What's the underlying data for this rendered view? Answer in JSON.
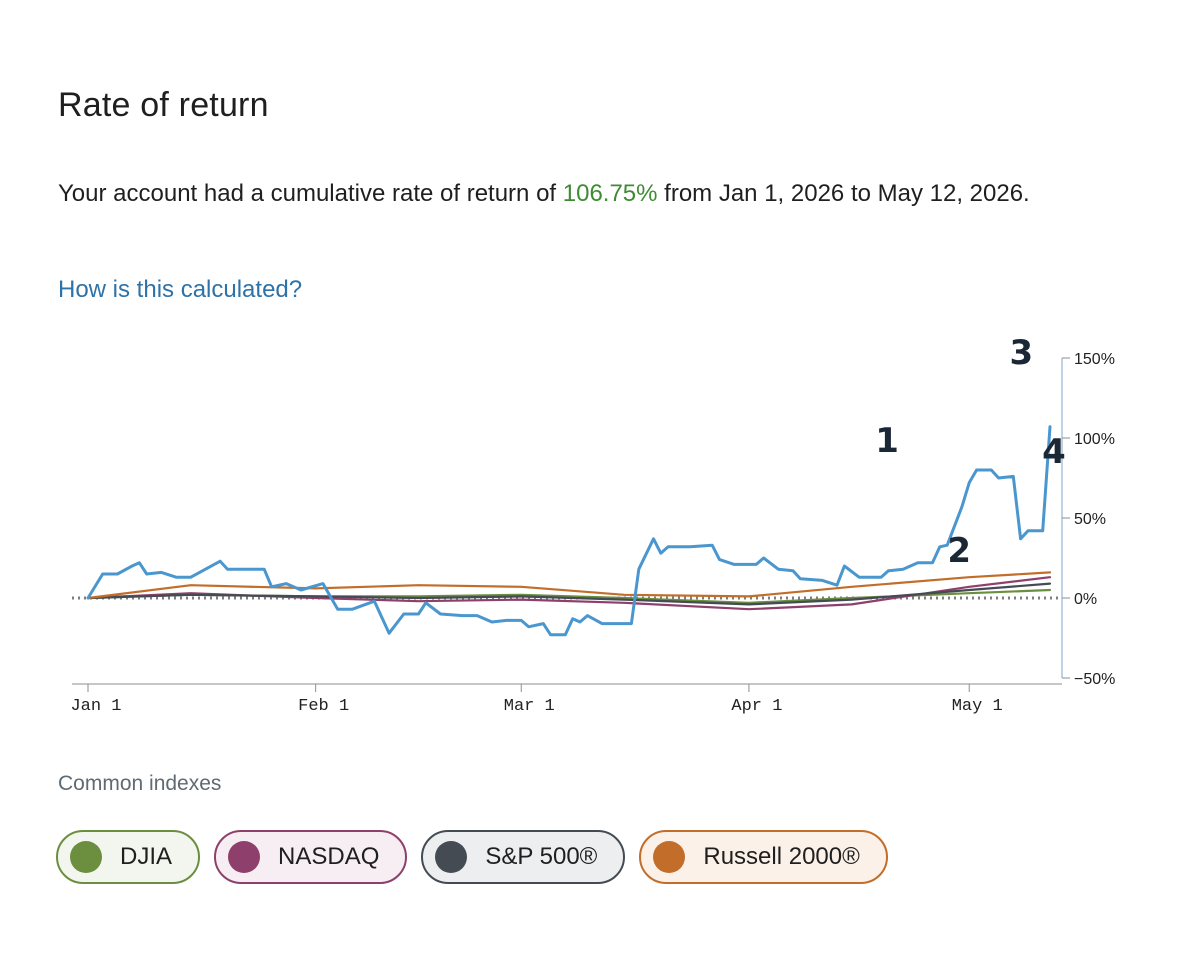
{
  "header": {
    "title": "Rate of return"
  },
  "summary": {
    "prefix": "Your account had a cumulative rate of return of ",
    "rate": "106.75%",
    "suffix": " from Jan 1, 2026 to May 12, 2026."
  },
  "link": {
    "how_calculated": "How is this calculated?"
  },
  "indexes": {
    "label": "Common indexes",
    "items": [
      "DJIA",
      "NASDAQ",
      "S&P 500®",
      "Russell 2000®"
    ]
  },
  "colors": {
    "account": "#4a96cf",
    "djia": "#6b8e3f",
    "nasdaq": "#8e3f6b",
    "sp500": "#444b52",
    "russell": "#c26d2a",
    "rate_text": "#3f8b34",
    "link": "#2e72a8"
  },
  "chart_data": {
    "type": "line",
    "x_start": "2026-01-01",
    "x_end": "2026-05-12",
    "x_ticks": [
      {
        "date": "2026-01-01",
        "label": "Jan 1"
      },
      {
        "date": "2026-02-01",
        "label": "Feb 1"
      },
      {
        "date": "2026-03-01",
        "label": "Mar 1"
      },
      {
        "date": "2026-04-01",
        "label": "Apr 1"
      },
      {
        "date": "2026-05-01",
        "label": "May 1"
      }
    ],
    "y_ticks": [
      {
        "value": 150,
        "label": "150%"
      },
      {
        "value": 100,
        "label": "100%"
      },
      {
        "value": 50,
        "label": "50%"
      },
      {
        "value": 0,
        "label": "0%"
      },
      {
        "value": -50,
        "label": "−50%"
      }
    ],
    "ylim": [
      -50,
      150
    ],
    "y_axis_position": "right",
    "baseline": 0,
    "annotations": [
      {
        "label": "1",
        "x": "2026-04-19",
        "y": 80
      },
      {
        "label": "2",
        "x": "2026-04-28",
        "y": 15
      },
      {
        "label": "3",
        "x": "2026-05-10",
        "y": 140
      },
      {
        "label": "4",
        "x": "2026-05-12",
        "y": 107
      }
    ],
    "series": [
      {
        "name": "Account",
        "color": "#4a96cf",
        "points": [
          [
            "2026-01-01",
            0
          ],
          [
            "2026-01-03",
            15
          ],
          [
            "2026-01-05",
            15
          ],
          [
            "2026-01-07",
            20
          ],
          [
            "2026-01-08",
            22
          ],
          [
            "2026-01-09",
            15
          ],
          [
            "2026-01-11",
            16
          ],
          [
            "2026-01-13",
            13
          ],
          [
            "2026-01-15",
            13
          ],
          [
            "2026-01-17",
            18
          ],
          [
            "2026-01-19",
            23
          ],
          [
            "2026-01-20",
            18
          ],
          [
            "2026-01-22",
            18
          ],
          [
            "2026-01-25",
            18
          ],
          [
            "2026-01-26",
            7
          ],
          [
            "2026-01-28",
            9
          ],
          [
            "2026-01-30",
            5
          ],
          [
            "2026-02-02",
            9
          ],
          [
            "2026-02-04",
            -7
          ],
          [
            "2026-02-06",
            -7
          ],
          [
            "2026-02-09",
            -2
          ],
          [
            "2026-02-11",
            -22
          ],
          [
            "2026-02-13",
            -10
          ],
          [
            "2026-02-15",
            -10
          ],
          [
            "2026-02-16",
            -3
          ],
          [
            "2026-02-18",
            -10
          ],
          [
            "2026-02-21",
            -11
          ],
          [
            "2026-02-23",
            -11
          ],
          [
            "2026-02-25",
            -15
          ],
          [
            "2026-02-27",
            -14
          ],
          [
            "2026-03-01",
            -14
          ],
          [
            "2026-03-02",
            -18
          ],
          [
            "2026-03-04",
            -16
          ],
          [
            "2026-03-05",
            -23
          ],
          [
            "2026-03-07",
            -23
          ],
          [
            "2026-03-08",
            -13
          ],
          [
            "2026-03-09",
            -15
          ],
          [
            "2026-03-10",
            -11
          ],
          [
            "2026-03-12",
            -16
          ],
          [
            "2026-03-14",
            -16
          ],
          [
            "2026-03-16",
            -16
          ],
          [
            "2026-03-17",
            18
          ],
          [
            "2026-03-19",
            37
          ],
          [
            "2026-03-20",
            28
          ],
          [
            "2026-03-21",
            32
          ],
          [
            "2026-03-24",
            32
          ],
          [
            "2026-03-27",
            33
          ],
          [
            "2026-03-28",
            24
          ],
          [
            "2026-03-30",
            21
          ],
          [
            "2026-04-02",
            21
          ],
          [
            "2026-04-03",
            25
          ],
          [
            "2026-04-05",
            18
          ],
          [
            "2026-04-07",
            17
          ],
          [
            "2026-04-08",
            12
          ],
          [
            "2026-04-11",
            11
          ],
          [
            "2026-04-13",
            8
          ],
          [
            "2026-04-14",
            20
          ],
          [
            "2026-04-16",
            13
          ],
          [
            "2026-04-19",
            13
          ],
          [
            "2026-04-20",
            17
          ],
          [
            "2026-04-22",
            18
          ],
          [
            "2026-04-24",
            22
          ],
          [
            "2026-04-26",
            22
          ],
          [
            "2026-04-27",
            32
          ],
          [
            "2026-04-28",
            33
          ],
          [
            "2026-04-30",
            57
          ],
          [
            "2026-05-01",
            72
          ],
          [
            "2026-05-02",
            80
          ],
          [
            "2026-05-04",
            80
          ],
          [
            "2026-05-05",
            75
          ],
          [
            "2026-05-07",
            76
          ],
          [
            "2026-05-08",
            37
          ],
          [
            "2026-05-09",
            42
          ],
          [
            "2026-05-11",
            42
          ],
          [
            "2026-05-12",
            107
          ]
        ]
      },
      {
        "name": "DJIA",
        "color": "#6b8e3f",
        "points": [
          [
            "2026-01-01",
            0
          ],
          [
            "2026-01-15",
            2
          ],
          [
            "2026-02-01",
            1
          ],
          [
            "2026-02-15",
            1
          ],
          [
            "2026-03-01",
            2
          ],
          [
            "2026-03-15",
            0
          ],
          [
            "2026-04-01",
            -3
          ],
          [
            "2026-04-15",
            0
          ],
          [
            "2026-05-01",
            3
          ],
          [
            "2026-05-12",
            5
          ]
        ]
      },
      {
        "name": "NASDAQ",
        "color": "#8e3f6b",
        "points": [
          [
            "2026-01-01",
            0
          ],
          [
            "2026-01-15",
            3
          ],
          [
            "2026-02-01",
            0
          ],
          [
            "2026-02-15",
            -2
          ],
          [
            "2026-03-01",
            -1
          ],
          [
            "2026-03-15",
            -3
          ],
          [
            "2026-04-01",
            -7
          ],
          [
            "2026-04-15",
            -4
          ],
          [
            "2026-05-01",
            7
          ],
          [
            "2026-05-12",
            13
          ]
        ]
      },
      {
        "name": "S&P 500®",
        "color": "#444b52",
        "points": [
          [
            "2026-01-01",
            0
          ],
          [
            "2026-01-15",
            2
          ],
          [
            "2026-02-01",
            1
          ],
          [
            "2026-02-15",
            0
          ],
          [
            "2026-03-01",
            1
          ],
          [
            "2026-03-15",
            -1
          ],
          [
            "2026-04-01",
            -4
          ],
          [
            "2026-04-15",
            -1
          ],
          [
            "2026-05-01",
            5
          ],
          [
            "2026-05-12",
            9
          ]
        ]
      },
      {
        "name": "Russell 2000®",
        "color": "#c26d2a",
        "points": [
          [
            "2026-01-01",
            0
          ],
          [
            "2026-01-15",
            8
          ],
          [
            "2026-02-01",
            6
          ],
          [
            "2026-02-15",
            8
          ],
          [
            "2026-03-01",
            7
          ],
          [
            "2026-03-15",
            2
          ],
          [
            "2026-04-01",
            1
          ],
          [
            "2026-04-15",
            7
          ],
          [
            "2026-05-01",
            13
          ],
          [
            "2026-05-12",
            16
          ]
        ]
      }
    ]
  }
}
